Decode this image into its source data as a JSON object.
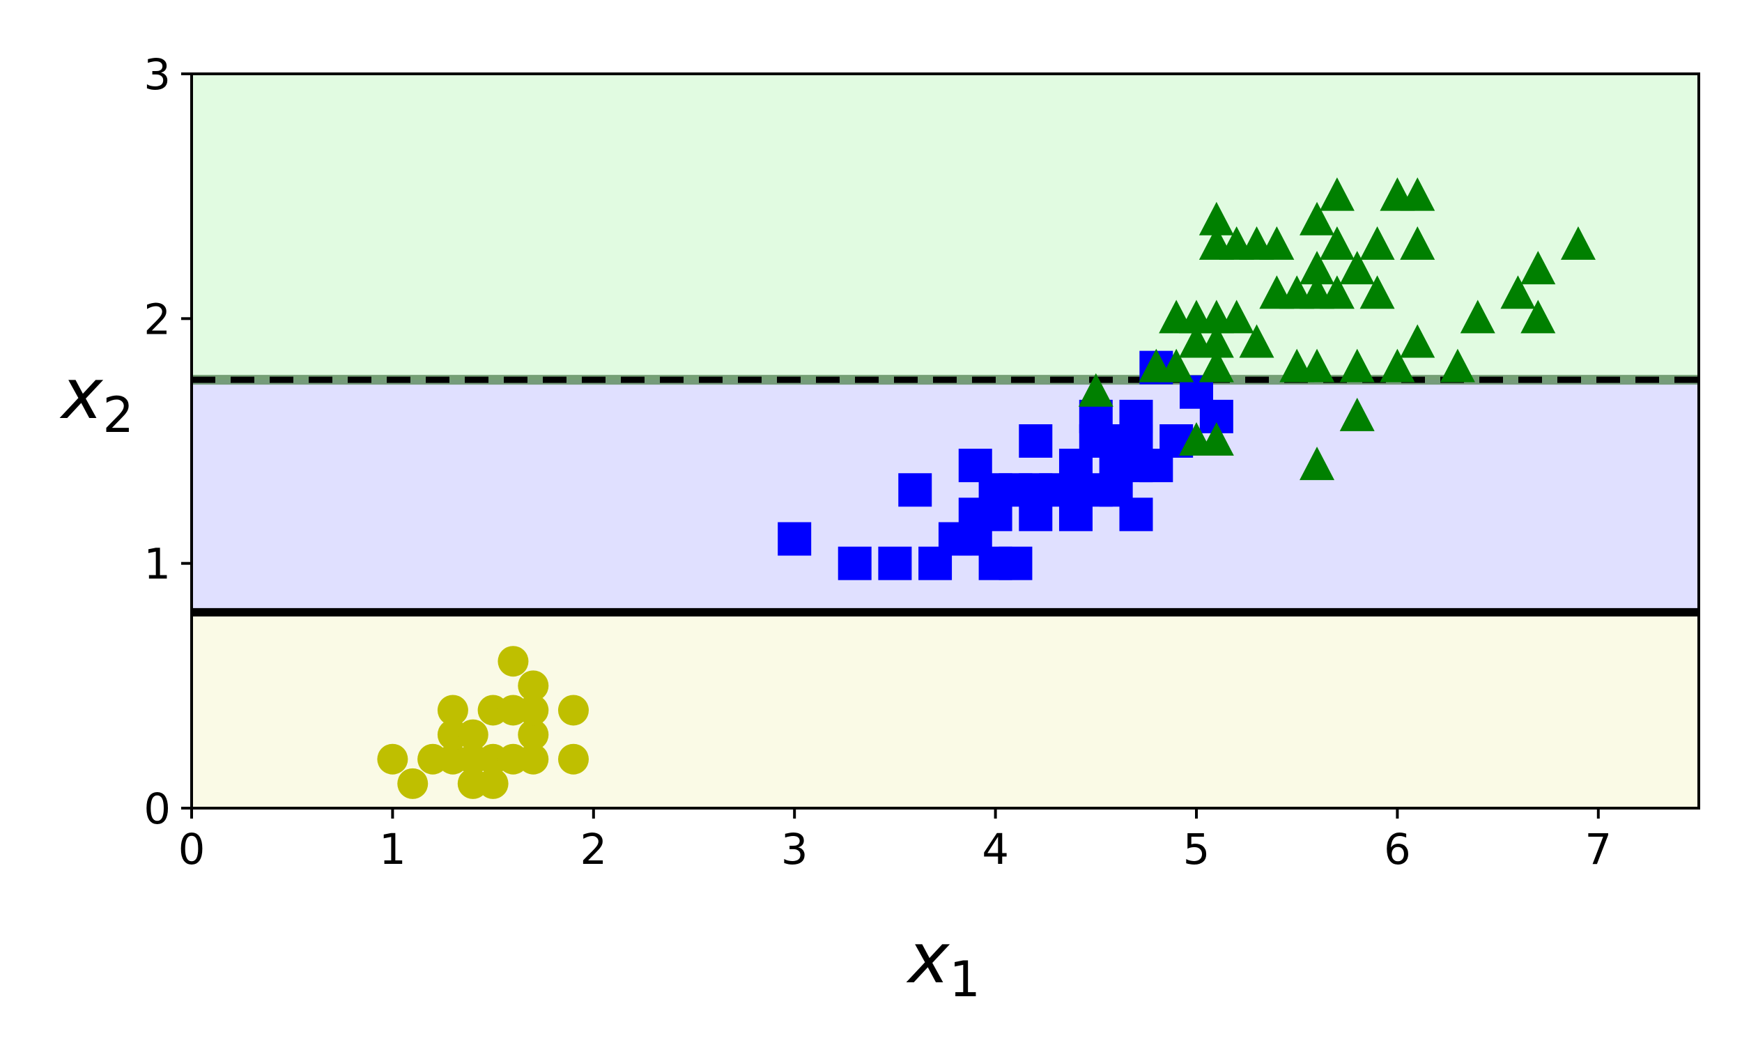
{
  "chart_data": {
    "type": "scatter",
    "title": "",
    "xlabel": {
      "base": "x",
      "sub": "1"
    },
    "ylabel": {
      "base": "x",
      "sub": "2"
    },
    "xlim": [
      0,
      7.5
    ],
    "ylim": [
      0,
      3
    ],
    "xticks": [
      "0",
      "1",
      "2",
      "3",
      "4",
      "5",
      "6",
      "7"
    ],
    "yticks": [
      "0",
      "1",
      "2",
      "3"
    ],
    "grid": false,
    "legend": "none",
    "regions": [
      {
        "y_from": 0,
        "y_to": 0.8,
        "color": "#fafae6"
      },
      {
        "y_from": 0.8,
        "y_to": 1.75,
        "color": "#e0e0ff"
      },
      {
        "y_from": 1.75,
        "y_to": 3,
        "color": "#e1fbe1"
      }
    ],
    "boundaries": [
      {
        "y": 0.8,
        "style": "solid",
        "color": "#000000"
      },
      {
        "y": 1.75,
        "style": "dashed",
        "color": "#000000"
      }
    ],
    "series": [
      {
        "marker": "circle",
        "color": "#bfbf00",
        "points": [
          [
            1.0,
            0.2
          ],
          [
            1.1,
            0.1
          ],
          [
            1.2,
            0.2
          ],
          [
            1.3,
            0.2
          ],
          [
            1.3,
            0.3
          ],
          [
            1.3,
            0.4
          ],
          [
            1.4,
            0.1
          ],
          [
            1.4,
            0.2
          ],
          [
            1.4,
            0.3
          ],
          [
            1.5,
            0.1
          ],
          [
            1.5,
            0.2
          ],
          [
            1.5,
            0.4
          ],
          [
            1.6,
            0.2
          ],
          [
            1.6,
            0.4
          ],
          [
            1.6,
            0.6
          ],
          [
            1.7,
            0.2
          ],
          [
            1.7,
            0.3
          ],
          [
            1.7,
            0.4
          ],
          [
            1.7,
            0.5
          ],
          [
            1.9,
            0.2
          ],
          [
            1.9,
            0.4
          ]
        ]
      },
      {
        "marker": "square",
        "color": "#0000ff",
        "points": [
          [
            3.0,
            1.1
          ],
          [
            3.3,
            1.0
          ],
          [
            3.5,
            1.0
          ],
          [
            3.6,
            1.3
          ],
          [
            3.7,
            1.0
          ],
          [
            3.8,
            1.1
          ],
          [
            3.9,
            1.1
          ],
          [
            3.9,
            1.2
          ],
          [
            3.9,
            1.4
          ],
          [
            4.0,
            1.0
          ],
          [
            4.0,
            1.2
          ],
          [
            4.0,
            1.3
          ],
          [
            4.1,
            1.0
          ],
          [
            4.1,
            1.3
          ],
          [
            4.2,
            1.2
          ],
          [
            4.2,
            1.3
          ],
          [
            4.2,
            1.5
          ],
          [
            4.3,
            1.3
          ],
          [
            4.4,
            1.2
          ],
          [
            4.4,
            1.3
          ],
          [
            4.4,
            1.4
          ],
          [
            4.5,
            1.3
          ],
          [
            4.5,
            1.5
          ],
          [
            4.5,
            1.6
          ],
          [
            4.6,
            1.3
          ],
          [
            4.6,
            1.4
          ],
          [
            4.6,
            1.5
          ],
          [
            4.7,
            1.2
          ],
          [
            4.7,
            1.4
          ],
          [
            4.7,
            1.5
          ],
          [
            4.7,
            1.6
          ],
          [
            4.8,
            1.4
          ],
          [
            4.8,
            1.8
          ],
          [
            4.9,
            1.5
          ],
          [
            5.0,
            1.7
          ],
          [
            5.1,
            1.6
          ]
        ]
      },
      {
        "marker": "triangle",
        "color": "#008000",
        "points": [
          [
            4.5,
            1.7
          ],
          [
            4.8,
            1.8
          ],
          [
            4.9,
            1.8
          ],
          [
            4.9,
            2.0
          ],
          [
            5.0,
            1.5
          ],
          [
            5.0,
            1.9
          ],
          [
            5.0,
            2.0
          ],
          [
            5.1,
            1.5
          ],
          [
            5.1,
            1.8
          ],
          [
            5.1,
            1.9
          ],
          [
            5.1,
            2.0
          ],
          [
            5.1,
            2.3
          ],
          [
            5.1,
            2.4
          ],
          [
            5.2,
            2.0
          ],
          [
            5.2,
            2.3
          ],
          [
            5.3,
            1.9
          ],
          [
            5.3,
            2.3
          ],
          [
            5.4,
            2.1
          ],
          [
            5.4,
            2.3
          ],
          [
            5.5,
            1.8
          ],
          [
            5.5,
            2.1
          ],
          [
            5.6,
            1.4
          ],
          [
            5.6,
            1.8
          ],
          [
            5.6,
            2.1
          ],
          [
            5.6,
            2.2
          ],
          [
            5.6,
            2.4
          ],
          [
            5.7,
            2.1
          ],
          [
            5.7,
            2.3
          ],
          [
            5.7,
            2.5
          ],
          [
            5.8,
            1.6
          ],
          [
            5.8,
            1.8
          ],
          [
            5.8,
            2.2
          ],
          [
            5.9,
            2.1
          ],
          [
            5.9,
            2.3
          ],
          [
            6.0,
            1.8
          ],
          [
            6.0,
            2.5
          ],
          [
            6.1,
            1.9
          ],
          [
            6.1,
            2.3
          ],
          [
            6.1,
            2.5
          ],
          [
            6.3,
            1.8
          ],
          [
            6.4,
            2.0
          ],
          [
            6.6,
            2.1
          ],
          [
            6.7,
            2.0
          ],
          [
            6.7,
            2.2
          ],
          [
            6.9,
            2.3
          ]
        ]
      }
    ]
  }
}
